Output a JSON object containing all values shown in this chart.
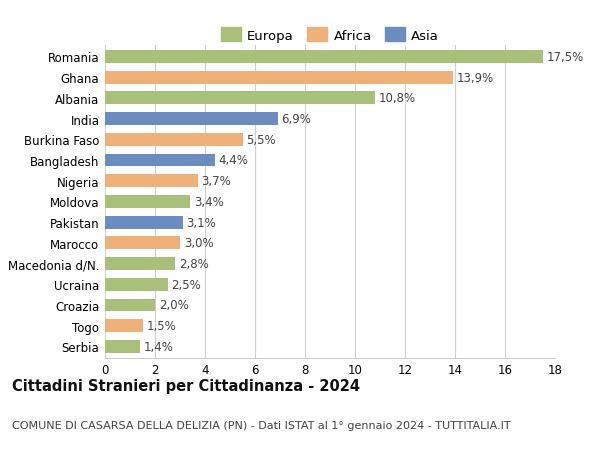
{
  "categories": [
    "Romania",
    "Ghana",
    "Albania",
    "India",
    "Burkina Faso",
    "Bangladesh",
    "Nigeria",
    "Moldova",
    "Pakistan",
    "Marocco",
    "Macedonia d/N.",
    "Ucraina",
    "Croazia",
    "Togo",
    "Serbia"
  ],
  "values": [
    17.5,
    13.9,
    10.8,
    6.9,
    5.5,
    4.4,
    3.7,
    3.4,
    3.1,
    3.0,
    2.8,
    2.5,
    2.0,
    1.5,
    1.4
  ],
  "labels": [
    "17,5%",
    "13,9%",
    "10,8%",
    "6,9%",
    "5,5%",
    "4,4%",
    "3,7%",
    "3,4%",
    "3,1%",
    "3,0%",
    "2,8%",
    "2,5%",
    "2,0%",
    "1,5%",
    "1,4%"
  ],
  "continents": [
    "Europa",
    "Africa",
    "Europa",
    "Asia",
    "Africa",
    "Asia",
    "Africa",
    "Europa",
    "Asia",
    "Africa",
    "Europa",
    "Europa",
    "Europa",
    "Africa",
    "Europa"
  ],
  "colors": {
    "Europa": "#a8c07a",
    "Africa": "#f0b07a",
    "Asia": "#6a8cbf"
  },
  "legend_order": [
    "Europa",
    "Africa",
    "Asia"
  ],
  "title": "Cittadini Stranieri per Cittadinanza - 2024",
  "subtitle": "COMUNE DI CASARSA DELLA DELIZIA (PN) - Dati ISTAT al 1° gennaio 2024 - TUTTITALIA.IT",
  "xlim": [
    0,
    18
  ],
  "xticks": [
    0,
    2,
    4,
    6,
    8,
    10,
    12,
    14,
    16,
    18
  ],
  "background_color": "#ffffff",
  "grid_color": "#d0d0d0",
  "bar_height": 0.62,
  "label_fontsize": 8.5,
  "title_fontsize": 10.5,
  "subtitle_fontsize": 8,
  "legend_fontsize": 9.5,
  "ytick_fontsize": 8.5,
  "xtick_fontsize": 8.5
}
